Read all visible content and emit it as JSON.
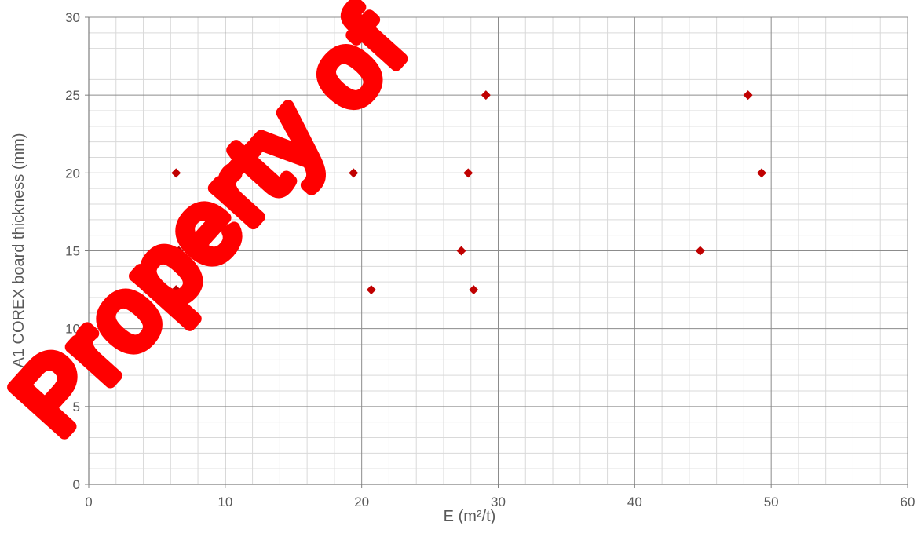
{
  "chart_data": {
    "type": "scatter",
    "title": "",
    "xlabel": "E (m²/t)",
    "ylabel": "A1 COREX board thickness (mm)",
    "xlim": [
      0,
      60
    ],
    "ylim": [
      0,
      30
    ],
    "x_major_step": 10,
    "x_minor_step": 2,
    "y_major_step": 5,
    "y_minor_step": 1,
    "x_ticks": [
      "0",
      "10",
      "20",
      "30",
      "40",
      "50",
      "60"
    ],
    "y_ticks": [
      "0",
      "5",
      "10",
      "15",
      "20",
      "25",
      "30"
    ],
    "grid": true,
    "legend": "none",
    "marker": "diamond",
    "marker_color": "#c00000",
    "series": [
      {
        "points": [
          {
            "x": 6.4,
            "y": 20
          },
          {
            "x": 6.6,
            "y": 15
          },
          {
            "x": 6.4,
            "y": 12.5
          },
          {
            "x": 19.4,
            "y": 20
          },
          {
            "x": 20.7,
            "y": 12.5
          },
          {
            "x": 27.8,
            "y": 20
          },
          {
            "x": 27.3,
            "y": 15
          },
          {
            "x": 28.2,
            "y": 12.5
          },
          {
            "x": 29.1,
            "y": 25
          },
          {
            "x": 44.8,
            "y": 15
          },
          {
            "x": 48.3,
            "y": 25
          },
          {
            "x": 49.3,
            "y": 20
          }
        ]
      }
    ]
  },
  "watermark": {
    "text": "Property of",
    "color": "#ff0000"
  }
}
